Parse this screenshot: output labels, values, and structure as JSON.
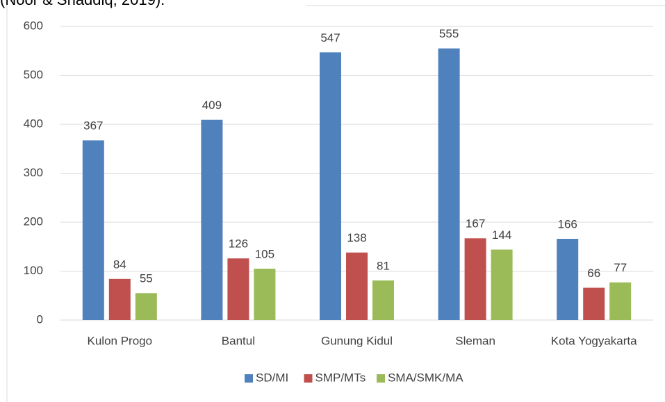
{
  "caption": "(Noor & Shaddiq, 2019).",
  "chart_data": {
    "type": "bar",
    "categories": [
      "Kulon Progo",
      "Bantul",
      "Gunung Kidul",
      "Sleman",
      "Kota Yogyakarta"
    ],
    "series": [
      {
        "name": "SD/MI",
        "color": "#4f81bd",
        "values": [
          367,
          409,
          547,
          555,
          166
        ]
      },
      {
        "name": "SMP/MTs",
        "color": "#c0504d",
        "values": [
          84,
          126,
          138,
          167,
          66
        ]
      },
      {
        "name": "SMA/SMK/MA",
        "color": "#9bbb59",
        "values": [
          55,
          105,
          81,
          144,
          77
        ]
      }
    ],
    "ylim": [
      0,
      600
    ],
    "yticks": [
      0,
      100,
      200,
      300,
      400,
      500,
      600
    ],
    "grid": true,
    "legend": "bottom"
  }
}
